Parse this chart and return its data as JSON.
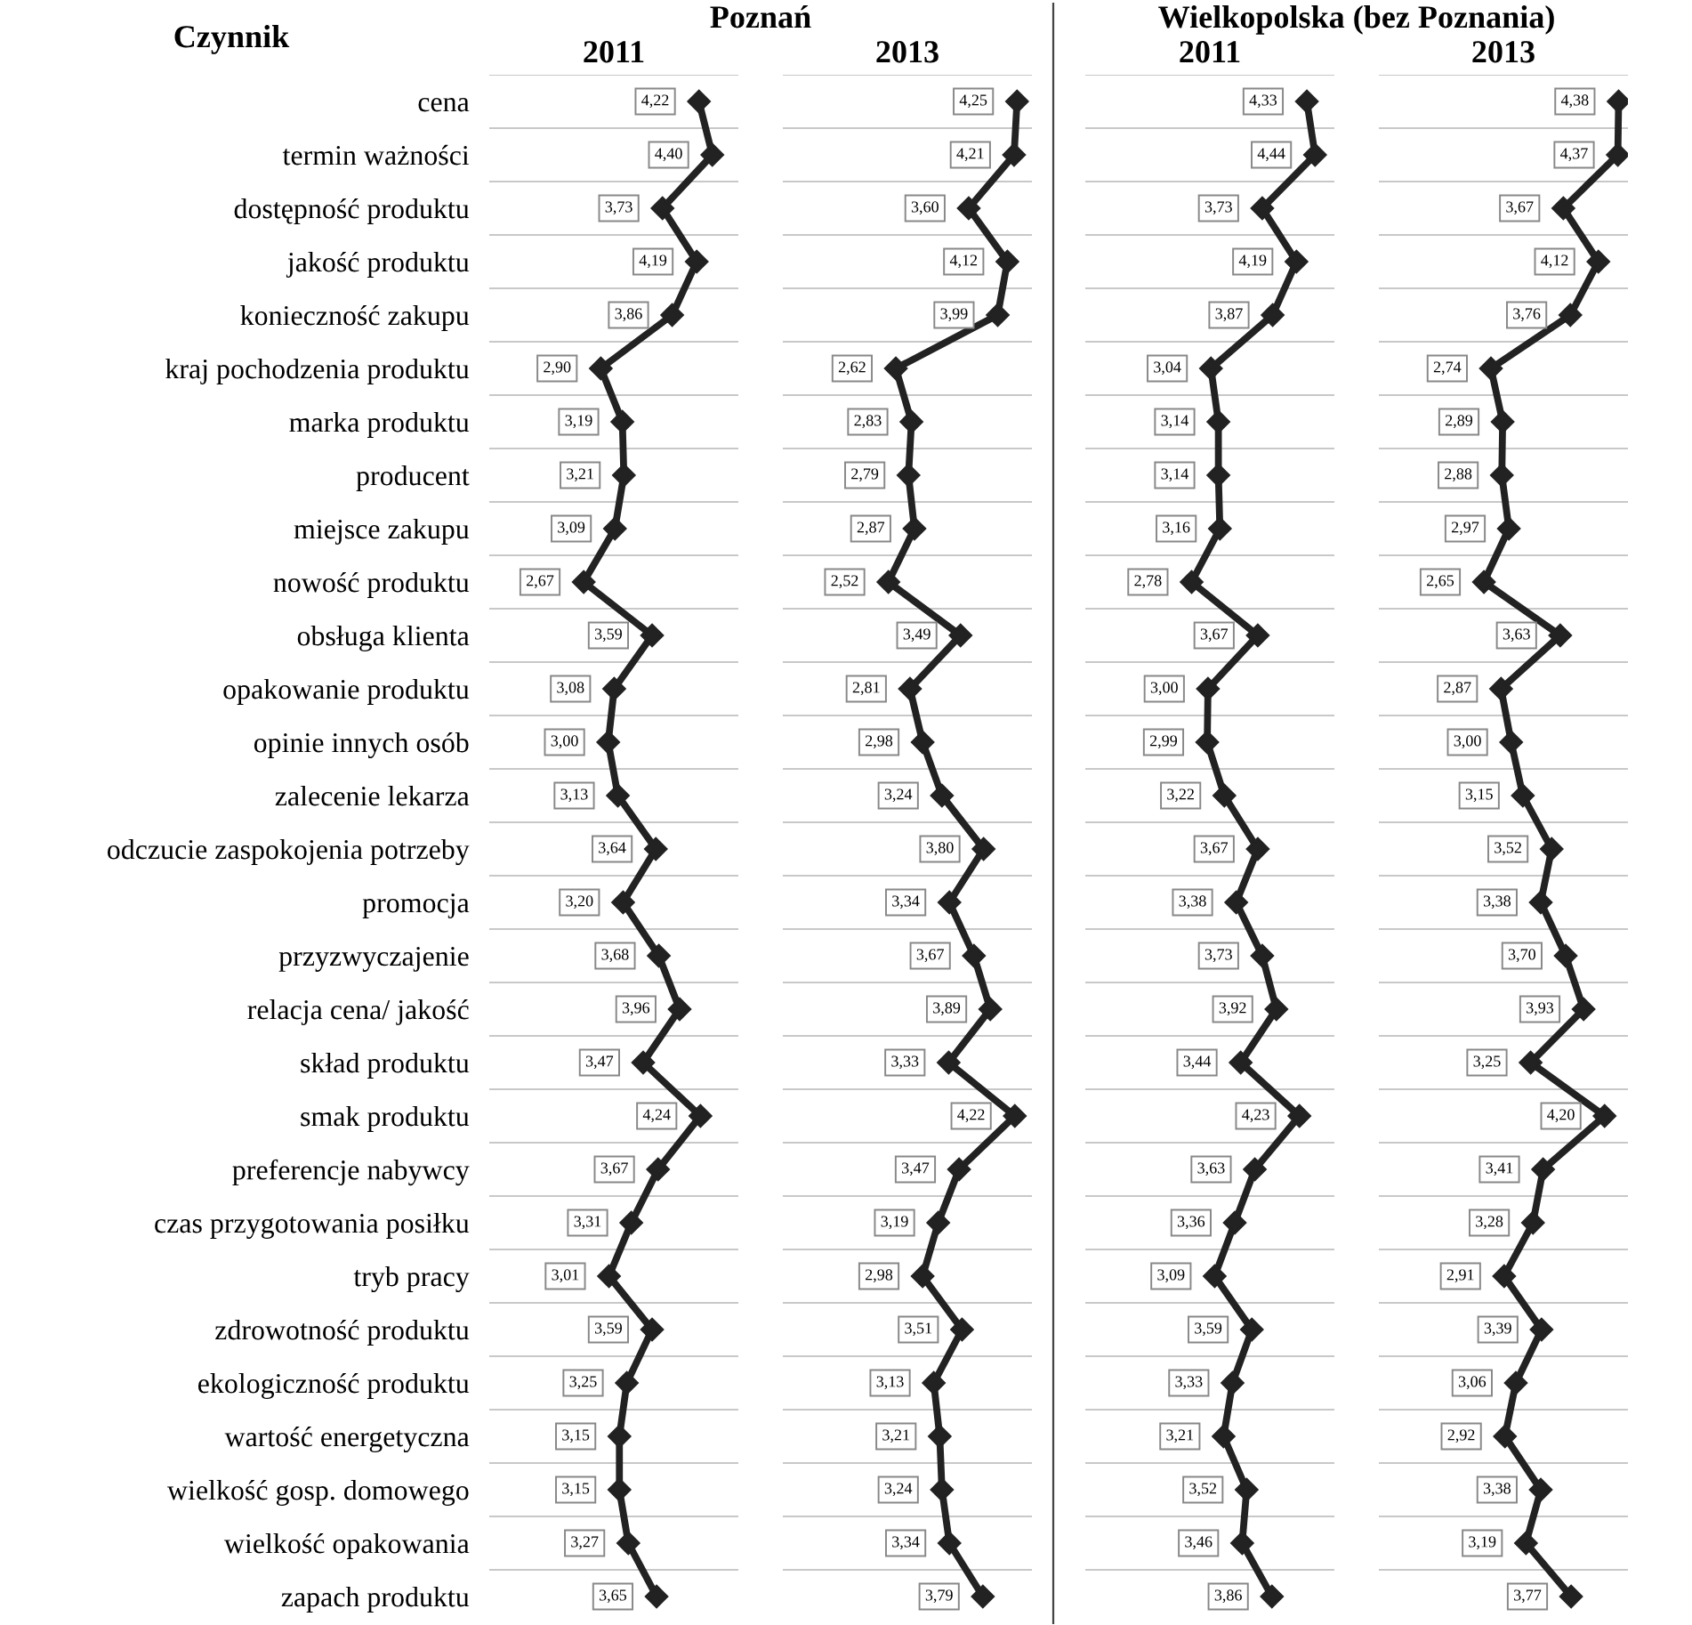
{
  "chart_data": [
    {
      "type": "line",
      "orientation": "horizontal",
      "title": "2011",
      "ylabel": "Czynnik",
      "annotations": [
        "Poznań"
      ],
      "categories": [
        "cena",
        "termin ważności",
        "dostępność produktu",
        "jakość produktu",
        "konieczność zakupu",
        "kraj pochodzenia produktu",
        "marka produktu",
        "producent",
        "miejsce zakupu",
        "nowość produktu",
        "obsługa klienta",
        "opakowanie produktu",
        "opinie innych osób",
        "zalecenie lekarza",
        "odczucie zaspokojenia potrzeby",
        "promocja",
        "przyzwyczajenie",
        "relacja cena/ jakość",
        "skład produktu",
        "smak produktu",
        "preferencje nabywcy",
        "czas przygotowania posiłku",
        "tryb pracy",
        "zdrowotność produktu",
        "ekologiczność produktu",
        "wartość energetyczna",
        "wielkość gosp. domowego",
        "wielkość opakowania",
        "zapach produktu"
      ],
      "xlim": [
        1.4,
        4.75
      ],
      "marker": "diamond",
      "grid": "y",
      "tick_labels": "y",
      "series": [
        {
          "color": "#222222",
          "values": [
            4.22,
            4.4,
            3.73,
            4.19,
            3.86,
            2.9,
            3.19,
            3.21,
            3.09,
            2.67,
            3.59,
            3.08,
            3.0,
            3.13,
            3.64,
            3.2,
            3.68,
            3.96,
            3.47,
            4.24,
            3.67,
            3.31,
            3.01,
            3.59,
            3.25,
            3.15,
            3.15,
            3.27,
            3.65
          ],
          "value_labels": [
            "4,22",
            "4,40",
            "3,73",
            "4,19",
            "3,86",
            "2,90",
            "3,19",
            "3,21",
            "3,09",
            "2,67",
            "3,59",
            "3,08",
            "3,00",
            "3,13",
            "3,64",
            "3,20",
            "3,68",
            "3,96",
            "3,47",
            "4,24",
            "3,67",
            "3,31",
            "3,01",
            "3,59",
            "3,25",
            "3,15",
            "3,15",
            "3,27",
            "3,65"
          ]
        }
      ]
    },
    {
      "type": "line",
      "orientation": "horizontal",
      "title": "2013",
      "categories": [
        null,
        null,
        null,
        null,
        null,
        null,
        null,
        null,
        null,
        null,
        null,
        null,
        null,
        null,
        null,
        null,
        null,
        null,
        null,
        null,
        null,
        null,
        null,
        null,
        null,
        null,
        null,
        null,
        null
      ],
      "xlim": [
        1.1,
        4.45
      ],
      "marker": "diamond",
      "grid": "y",
      "tick_labels": false,
      "series": [
        {
          "color": "#222222",
          "values": [
            4.25,
            4.21,
            3.6,
            4.12,
            3.99,
            2.62,
            2.83,
            2.79,
            2.87,
            2.52,
            3.49,
            2.81,
            2.98,
            3.24,
            3.8,
            3.34,
            3.67,
            3.89,
            3.33,
            4.22,
            3.47,
            3.19,
            2.98,
            3.51,
            3.13,
            3.21,
            3.24,
            3.34,
            3.79
          ],
          "value_labels": [
            "4,25",
            "4,21",
            "3,60",
            "4,12",
            "3,99",
            "2,62",
            "2,83",
            "2,79",
            "2,87",
            "2,52",
            "3,49",
            "2,81",
            "2,98",
            "3,24",
            "3,80",
            "3,34",
            "3,67",
            "3,89",
            "3,33",
            "4,22",
            "3,47",
            "3,19",
            "2,98",
            "3,51",
            "3,13",
            "3,21",
            "3,24",
            "3,34",
            "3,79"
          ]
        }
      ]
    },
    {
      "type": "line",
      "orientation": "horizontal",
      "title": "2011",
      "annotations": [
        "Wielkopolska (bez Poznania)"
      ],
      "categories": [
        null,
        null,
        null,
        null,
        null,
        null,
        null,
        null,
        null,
        null,
        null,
        null,
        null,
        null,
        null,
        null,
        null,
        null,
        null,
        null,
        null,
        null,
        null,
        null,
        null,
        null,
        null,
        null,
        null
      ],
      "xlim": [
        1.35,
        4.7
      ],
      "marker": "diamond",
      "grid": "y",
      "tick_labels": false,
      "series": [
        {
          "color": "#222222",
          "values": [
            4.33,
            4.44,
            3.73,
            4.19,
            3.87,
            3.04,
            3.14,
            3.14,
            3.16,
            2.78,
            3.67,
            3.0,
            2.99,
            3.22,
            3.67,
            3.38,
            3.73,
            3.92,
            3.44,
            4.23,
            3.63,
            3.36,
            3.09,
            3.59,
            3.33,
            3.21,
            3.52,
            3.46,
            3.86
          ],
          "value_labels": [
            "4,33",
            "4,44",
            "3,73",
            "4,19",
            "3,87",
            "3,04",
            "3,14",
            "3,14",
            "3,16",
            "2,78",
            "3,67",
            "3,00",
            "2,99",
            "3,22",
            "3,67",
            "3,38",
            "3,73",
            "3,92",
            "3,44",
            "4,23",
            "3,63",
            "3,36",
            "3,09",
            "3,59",
            "3,33",
            "3,21",
            "3,52",
            "3,46",
            "3,86"
          ]
        }
      ]
    },
    {
      "type": "line",
      "orientation": "horizontal",
      "title": "2013",
      "categories": [
        null,
        null,
        null,
        null,
        null,
        null,
        null,
        null,
        null,
        null,
        null,
        null,
        null,
        null,
        null,
        null,
        null,
        null,
        null,
        null,
        null,
        null,
        null,
        null,
        null,
        null,
        null,
        null,
        null
      ],
      "xlim": [
        1.3,
        4.5
      ],
      "marker": "diamond",
      "grid": "y",
      "tick_labels": false,
      "series": [
        {
          "color": "#222222",
          "values": [
            4.38,
            4.37,
            3.67,
            4.12,
            3.76,
            2.74,
            2.89,
            2.88,
            2.97,
            2.65,
            3.63,
            2.87,
            3.0,
            3.15,
            3.52,
            3.38,
            3.7,
            3.93,
            3.25,
            4.2,
            3.41,
            3.28,
            2.91,
            3.39,
            3.06,
            2.92,
            3.38,
            3.19,
            3.77
          ],
          "value_labels": [
            "4,38",
            "4,37",
            "3,67",
            "4,12",
            "3,76",
            "2,74",
            "2,89",
            "2,88",
            "2,97",
            "2,65",
            "3,63",
            "2,87",
            "3,00",
            "3,15",
            "3,52",
            "3,38",
            "3,70",
            "3,93",
            "3,25",
            "4,20",
            "3,41",
            "3,28",
            "2,91",
            "3,39",
            "3,06",
            "2,92",
            "3,38",
            "3,19",
            "3,77"
          ]
        }
      ]
    }
  ]
}
